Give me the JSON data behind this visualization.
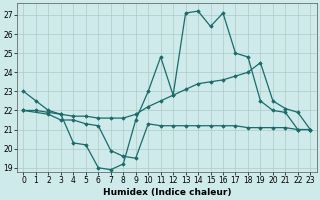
{
  "xlabel": "Humidex (Indice chaleur)",
  "xlim": [
    -0.5,
    23.5
  ],
  "ylim": [
    18.8,
    27.6
  ],
  "yticks": [
    19,
    20,
    21,
    22,
    23,
    24,
    25,
    26,
    27
  ],
  "xticks": [
    0,
    1,
    2,
    3,
    4,
    5,
    6,
    7,
    8,
    9,
    10,
    11,
    12,
    13,
    14,
    15,
    16,
    17,
    18,
    19,
    20,
    21,
    22,
    23
  ],
  "bg_color": "#ceeaea",
  "line_color": "#1a6b6b",
  "grid_color": "#b0c8c8",
  "lines": [
    {
      "x": [
        0,
        1,
        2,
        3,
        4,
        5,
        6,
        7,
        8,
        9,
        10,
        11,
        12,
        13,
        14,
        15,
        16,
        17,
        18,
        19,
        20,
        21,
        22,
        23
      ],
      "y": [
        23.0,
        22.5,
        22.0,
        21.8,
        20.3,
        20.2,
        19.0,
        18.9,
        19.2,
        21.5,
        23.0,
        24.8,
        22.8,
        27.1,
        27.2,
        26.4,
        27.1,
        25.0,
        24.8,
        22.5,
        22.0,
        21.9,
        21.0,
        21.0
      ]
    },
    {
      "x": [
        0,
        1,
        2,
        3,
        4,
        5,
        6,
        7,
        8,
        9,
        10,
        11,
        12,
        13,
        14,
        15,
        16,
        17,
        18,
        19,
        20,
        21,
        22,
        23
      ],
      "y": [
        22.0,
        22.0,
        21.9,
        21.8,
        21.7,
        21.7,
        21.6,
        21.6,
        21.6,
        21.8,
        22.2,
        22.5,
        22.8,
        23.1,
        23.4,
        23.5,
        23.6,
        23.8,
        24.0,
        24.5,
        22.5,
        22.1,
        21.9,
        21.0
      ]
    },
    {
      "x": [
        0,
        2,
        3,
        4,
        5,
        6,
        7,
        8,
        9,
        10,
        11,
        12,
        13,
        14,
        15,
        16,
        17,
        18,
        19,
        20,
        21,
        22,
        23
      ],
      "y": [
        22.0,
        21.8,
        21.5,
        21.5,
        21.3,
        21.2,
        19.9,
        19.6,
        19.5,
        21.3,
        21.2,
        21.2,
        21.2,
        21.2,
        21.2,
        21.2,
        21.2,
        21.1,
        21.1,
        21.1,
        21.1,
        21.0,
        21.0
      ]
    }
  ]
}
